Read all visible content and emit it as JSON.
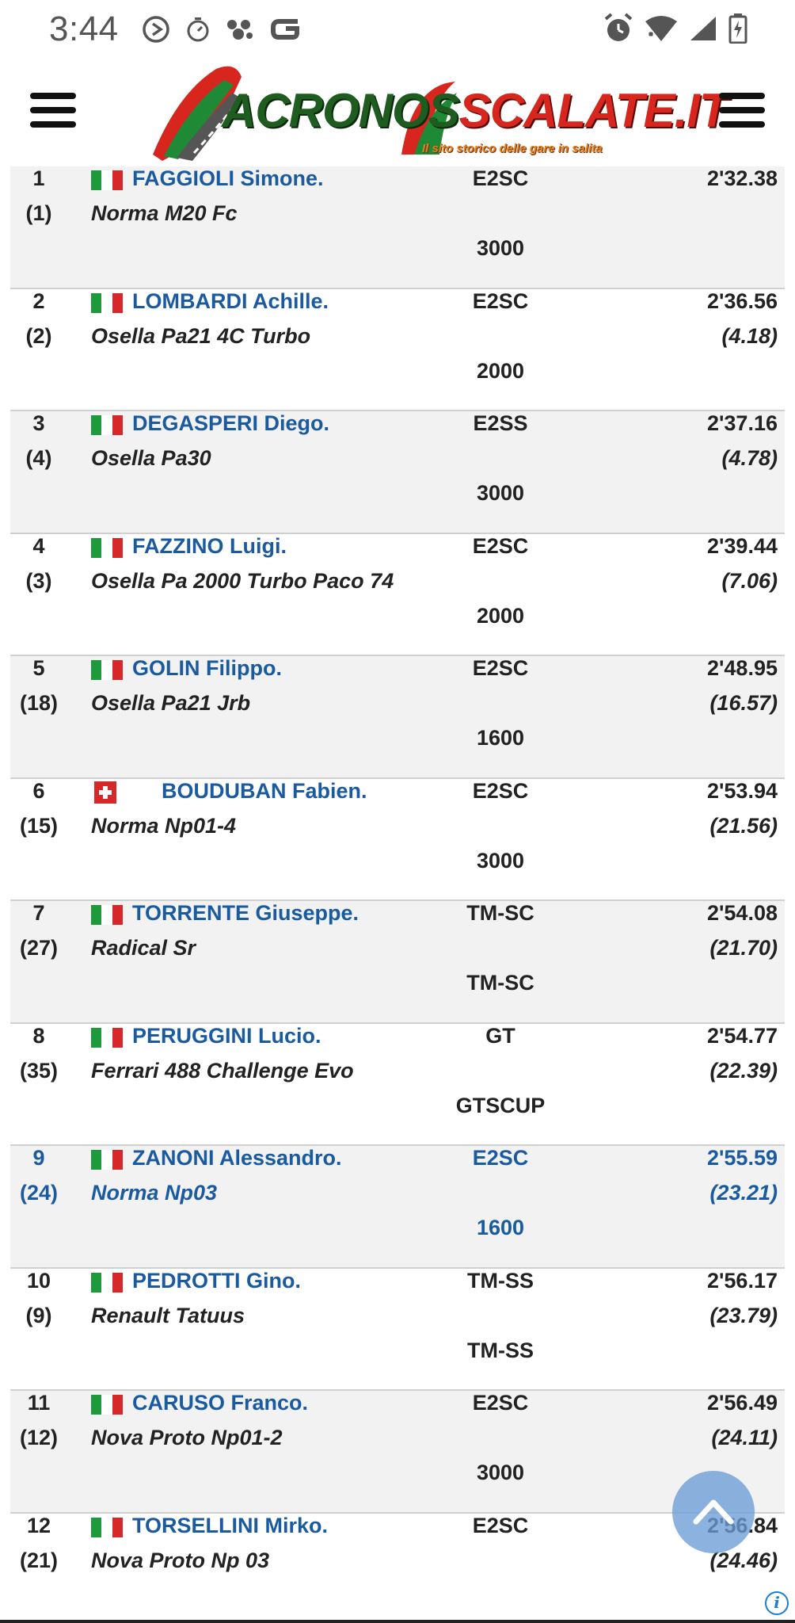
{
  "status_bar": {
    "time": "3:44",
    "left_icons": [
      "play-circle-icon",
      "timer-icon",
      "sparkle-icon",
      "g-icon"
    ],
    "right_icons": [
      "alarm-icon",
      "wifi-icon",
      "signal-icon",
      "battery-charging-icon"
    ]
  },
  "header": {
    "logo_part1": "ACRONOS",
    "logo_part2": "SCALATE.IT",
    "tagline": "Il sito storico delle gare in salita"
  },
  "colors": {
    "link_blue": "#1a5aa0",
    "row_alt": "#f2f2f2",
    "italy_green": "#1d9a3a",
    "italy_red": "#d62828"
  },
  "results": [
    {
      "pos": "1",
      "start": "(1)",
      "flag": "it",
      "driver": "FAGGIOLI Simone.",
      "car": "Norma M20 Fc",
      "cls": "E2SC",
      "grp": "3000",
      "time": "2'32.38",
      "gap": ""
    },
    {
      "pos": "2",
      "start": "(2)",
      "flag": "it",
      "driver": "LOMBARDI Achille.",
      "car": "Osella Pa21 4C Turbo",
      "cls": "E2SC",
      "grp": "2000",
      "time": "2'36.56",
      "gap": "(4.18)"
    },
    {
      "pos": "3",
      "start": "(4)",
      "flag": "it",
      "driver": "DEGASPERI Diego.",
      "car": "Osella Pa30",
      "cls": "E2SS",
      "grp": "3000",
      "time": "2'37.16",
      "gap": "(4.78)"
    },
    {
      "pos": "4",
      "start": "(3)",
      "flag": "it",
      "driver": "FAZZINO Luigi.",
      "car": "Osella Pa 2000 Turbo Paco 74",
      "cls": "E2SC",
      "grp": "2000",
      "time": "2'39.44",
      "gap": "(7.06)"
    },
    {
      "pos": "5",
      "start": "(18)",
      "flag": "it",
      "driver": "GOLIN Filippo.",
      "car": "Osella Pa21 Jrb",
      "cls": "E2SC",
      "grp": "1600",
      "time": "2'48.95",
      "gap": "(16.57)"
    },
    {
      "pos": "6",
      "start": "(15)",
      "flag": "ch",
      "driver": "BOUDUBAN Fabien.",
      "car": "Norma Np01-4",
      "cls": "E2SC",
      "grp": "3000",
      "time": "2'53.94",
      "gap": "(21.56)"
    },
    {
      "pos": "7",
      "start": "(27)",
      "flag": "it",
      "driver": "TORRENTE Giuseppe.",
      "car": "Radical Sr",
      "cls": "TM-SC",
      "grp": "TM-SC",
      "time": "2'54.08",
      "gap": "(21.70)"
    },
    {
      "pos": "8",
      "start": "(35)",
      "flag": "it",
      "driver": "PERUGGINI Lucio.",
      "car": "Ferrari 488 Challenge Evo",
      "cls": "GT",
      "grp": "GTSCUP",
      "time": "2'54.77",
      "gap": "(22.39)"
    },
    {
      "pos": "9",
      "start": "(24)",
      "flag": "it",
      "driver": "ZANONI Alessandro.",
      "car": "Norma Np03",
      "cls": "E2SC",
      "grp": "1600",
      "time": "2'55.59",
      "gap": "(23.21)",
      "highlight": true
    },
    {
      "pos": "10",
      "start": "(9)",
      "flag": "it",
      "driver": "PEDROTTI Gino.",
      "car": "Renault Tatuus",
      "cls": "TM-SS",
      "grp": "TM-SS",
      "time": "2'56.17",
      "gap": "(23.79)"
    },
    {
      "pos": "11",
      "start": "(12)",
      "flag": "it",
      "driver": "CARUSO Franco.",
      "car": "Nova Proto Np01-2",
      "cls": "E2SC",
      "grp": "3000",
      "time": "2'56.49",
      "gap": "(24.11)"
    },
    {
      "pos": "12",
      "start": "(21)",
      "flag": "it",
      "driver": "TORSELLINI Mirko.",
      "car": "Nova Proto Np 03",
      "cls": "E2SC",
      "grp": "",
      "time": "2'56.84",
      "gap": "(24.46)"
    }
  ]
}
